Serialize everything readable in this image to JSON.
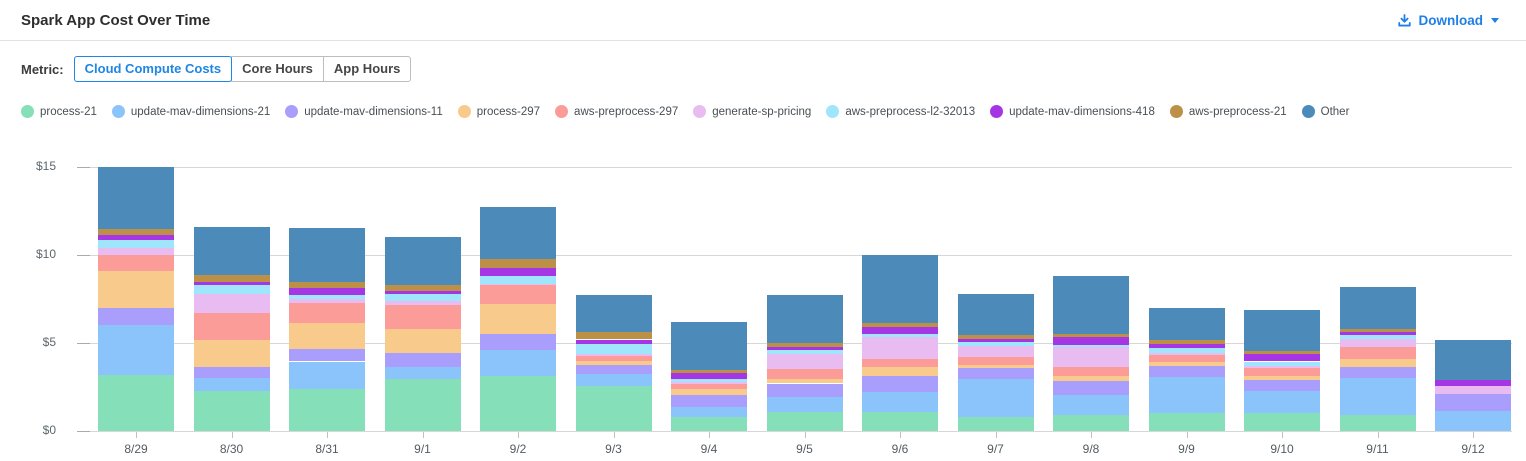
{
  "header": {
    "title": "Spark App Cost Over Time",
    "download": {
      "label": "Download",
      "icon": "download-icon",
      "caret": "caret-down-icon"
    }
  },
  "metric_selector": {
    "label": "Metric:",
    "options": [
      {
        "label": "Cloud Compute Costs",
        "selected": true
      },
      {
        "label": "Core Hours",
        "selected": false
      },
      {
        "label": "App Hours",
        "selected": false
      }
    ]
  },
  "colors": {
    "accent_blue": "#1f7fe8",
    "gridline": "#d7d7d7",
    "axis_text": "#5c676d"
  },
  "chart_data": {
    "type": "bar",
    "stacked": true,
    "title": "Spark App Cost Over Time",
    "xlabel": "",
    "ylabel": "",
    "value_unit": "$",
    "ylim": [
      0,
      15
    ],
    "grid": true,
    "legend_position": "top",
    "y_ticks": [
      {
        "value": 0,
        "label": "$0"
      },
      {
        "value": 5,
        "label": "$5"
      },
      {
        "value": 10,
        "label": "$10"
      },
      {
        "value": 15,
        "label": "$15"
      }
    ],
    "categories": [
      "8/29",
      "8/30",
      "8/31",
      "9/1",
      "9/2",
      "9/3",
      "9/4",
      "9/5",
      "9/6",
      "9/7",
      "9/8",
      "9/9",
      "9/10",
      "9/11",
      "9/12"
    ],
    "series": [
      {
        "name": "process-21",
        "color": "#85dfb9",
        "values": [
          3.2,
          2.25,
          2.4,
          2.95,
          3.15,
          2.55,
          0.8,
          1.1,
          1.1,
          0.8,
          0.9,
          1.05,
          1.05,
          0.9,
          0
        ]
      },
      {
        "name": "update-mav-dimensions-21",
        "color": "#8ac4fb",
        "values": [
          2.8,
          0.75,
          1.55,
          0.7,
          1.45,
          0.7,
          0.55,
          0.85,
          1.1,
          2.15,
          1.15,
          2.0,
          1.2,
          2.1,
          1.15
        ]
      },
      {
        "name": "update-mav-dimensions-11",
        "color": "#a99efb",
        "values": [
          1.0,
          0.65,
          0.7,
          0.8,
          0.9,
          0.5,
          0.7,
          0.75,
          0.9,
          0.65,
          0.8,
          0.65,
          0.65,
          0.65,
          0.95
        ]
      },
      {
        "name": "process-297",
        "color": "#f8ca8c",
        "values": [
          2.1,
          1.5,
          1.5,
          1.35,
          1.7,
          0.25,
          0.35,
          0.25,
          0.55,
          0.15,
          0.3,
          0.2,
          0.25,
          0.45,
          0
        ]
      },
      {
        "name": "aws-preprocess-297",
        "color": "#fb9c98",
        "values": [
          0.9,
          1.55,
          1.15,
          1.35,
          1.1,
          0.25,
          0.25,
          0.55,
          0.45,
          0.45,
          0.5,
          0.4,
          0.45,
          0.65,
          0
        ]
      },
      {
        "name": "generate-sp-pricing",
        "color": "#e8bcf0",
        "values": [
          0.4,
          1.1,
          0.2,
          0.25,
          0.05,
          0.15,
          0.15,
          0.85,
          1.25,
          0.65,
          1.15,
          0.15,
          0.1,
          0.5,
          0.45
        ]
      },
      {
        "name": "aws-preprocess-l2-32013",
        "color": "#9fe5fb",
        "values": [
          0.45,
          0.5,
          0.25,
          0.4,
          0.45,
          0.55,
          0.15,
          0.25,
          0.15,
          0.2,
          0.1,
          0.25,
          0.25,
          0.2,
          0
        ]
      },
      {
        "name": "update-mav-dimensions-418",
        "color": "#a636e3",
        "values": [
          0.3,
          0.15,
          0.4,
          0.15,
          0.45,
          0.25,
          0.35,
          0.15,
          0.4,
          0.2,
          0.45,
          0.25,
          0.4,
          0.15,
          0.35
        ]
      },
      {
        "name": "aws-preprocess-21",
        "color": "#bd9047",
        "values": [
          0.35,
          0.4,
          0.3,
          0.35,
          0.5,
          0.4,
          0.15,
          0.25,
          0.25,
          0.2,
          0.15,
          0.2,
          0.2,
          0.2,
          0
        ]
      },
      {
        "name": "Other",
        "color": "#4c8bb9",
        "values": [
          3.5,
          2.75,
          3.1,
          2.7,
          3.0,
          2.15,
          2.75,
          2.75,
          3.85,
          2.35,
          3.3,
          1.85,
          2.3,
          2.4,
          2.25
        ]
      }
    ]
  }
}
